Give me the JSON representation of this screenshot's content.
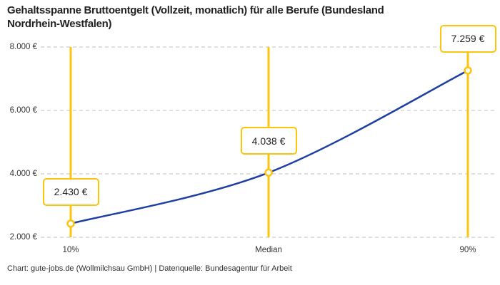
{
  "chart_data": {
    "type": "line",
    "title": "Gehaltsspanne Bruttoentgelt (Vollzeit, monatlich) für alle Berufe (Bundesland Nordrhein-Westfalen)",
    "title_lines": [
      "Gehaltsspanne Bruttoentgelt (Vollzeit, monatlich) für alle Berufe (Bundesland",
      "Nordrhein-Westfalen)"
    ],
    "categories": [
      "10%",
      "Median",
      "90%"
    ],
    "values": [
      2430,
      4038,
      7259
    ],
    "value_labels": [
      "2.430 €",
      "4.038 €",
      "7.259 €"
    ],
    "y_ticks": [
      {
        "value": 8000,
        "label": "8.000 €"
      },
      {
        "value": 6000,
        "label": "6.000 €"
      },
      {
        "value": 4000,
        "label": "4.000 €"
      },
      {
        "value": 2000,
        "label": "2.000 €"
      }
    ],
    "ylim": [
      2000,
      8000
    ],
    "xlabel": "",
    "ylabel": "",
    "grid": "horizontal-dashed",
    "legend": "none",
    "colors": {
      "line": "#1e3fa4",
      "accent": "#fdc40d",
      "marker_fill": "#ffffff",
      "grid": "#cccccc",
      "title_text": "#222222",
      "axis_text": "#333333"
    },
    "footer": "Chart: gute-jobs.de (Wollmilchsau GmbH) | Datenquelle: Bundesagentur für Arbeit"
  }
}
